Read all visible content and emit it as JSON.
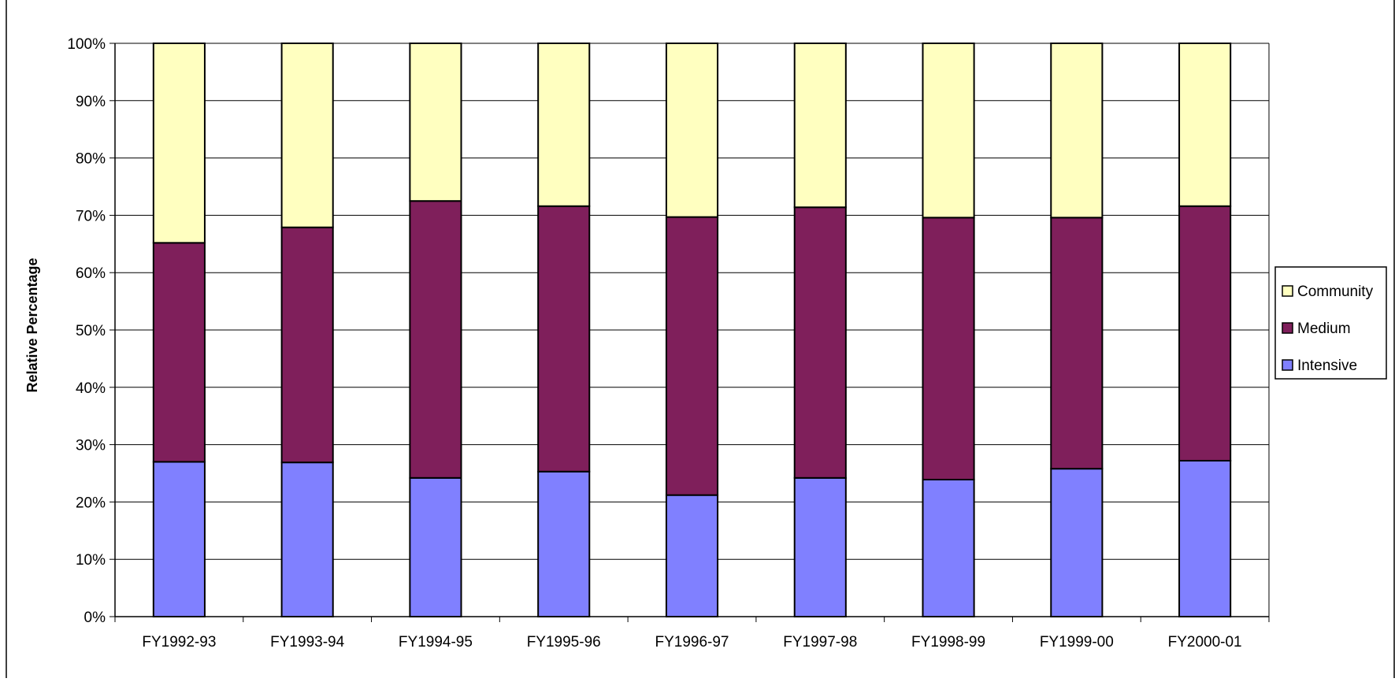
{
  "chart_data": {
    "type": "bar",
    "stacked": "percent",
    "title": "",
    "xlabel": "",
    "ylabel": "Relative Percentage",
    "ylim": [
      0,
      100
    ],
    "yticks": [
      "0%",
      "10%",
      "20%",
      "30%",
      "40%",
      "50%",
      "60%",
      "70%",
      "80%",
      "90%",
      "100%"
    ],
    "grid": true,
    "legend_position": "right",
    "categories": [
      "FY1992-93",
      "FY1993-94",
      "FY1994-95",
      "FY1995-96",
      "FY1996-97",
      "FY1997-98",
      "FY1998-99",
      "FY1999-00",
      "FY2000-01"
    ],
    "series": [
      {
        "name": "Intensive",
        "color": "#8080ff",
        "values": [
          27.0,
          26.9,
          24.2,
          25.3,
          21.2,
          24.2,
          23.9,
          25.8,
          27.2
        ]
      },
      {
        "name": "Medium",
        "color": "#7f1f5b",
        "values": [
          38.2,
          41.0,
          48.3,
          46.3,
          48.5,
          47.2,
          45.7,
          43.8,
          44.4
        ]
      },
      {
        "name": "Community",
        "color": "#ffffc0",
        "values": [
          34.8,
          32.1,
          27.5,
          28.4,
          30.3,
          28.6,
          30.4,
          30.4,
          28.4
        ]
      }
    ],
    "legend_order": [
      "Community",
      "Medium",
      "Intensive"
    ]
  }
}
